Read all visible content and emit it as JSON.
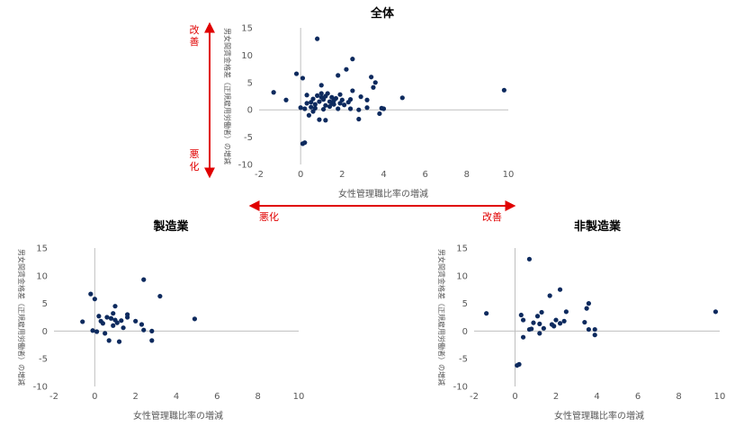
{
  "colors": {
    "marker": "#0d2a5e",
    "axis_zero": "#bfbfbf",
    "arrow": "#e00000"
  },
  "annotations": {
    "improve": "改善",
    "worsen": "悪化"
  },
  "chart_data": [
    {
      "type": "scatter",
      "title": "全体",
      "xlabel": "女性管理職比率の増減",
      "ylabel": "男女間賃金格差（正規雇用労働者）の増減",
      "xlim": [
        -2,
        10
      ],
      "ylim": [
        -10,
        15
      ],
      "xticks": [
        "-2",
        "0",
        "2",
        "4",
        "6",
        "8",
        "10"
      ],
      "yticks": [
        "15",
        "10",
        "5",
        "0",
        "-5",
        "-10"
      ],
      "grid": false,
      "points": [
        [
          -1.3,
          3.2
        ],
        [
          -0.7,
          1.8
        ],
        [
          -0.2,
          6.6
        ],
        [
          0.1,
          5.8
        ],
        [
          0.0,
          0.4
        ],
        [
          0.2,
          0.2
        ],
        [
          0.3,
          2.7
        ],
        [
          0.4,
          -1.0
        ],
        [
          0.5,
          1.4
        ],
        [
          0.6,
          2.0
        ],
        [
          0.7,
          0.3
        ],
        [
          0.8,
          2.6
        ],
        [
          0.8,
          13.0
        ],
        [
          0.9,
          -1.8
        ],
        [
          1.0,
          2.3
        ],
        [
          1.0,
          4.5
        ],
        [
          1.1,
          1.9
        ],
        [
          1.2,
          0.8
        ],
        [
          1.2,
          -1.9
        ],
        [
          1.3,
          3.0
        ],
        [
          1.4,
          1.5
        ],
        [
          1.5,
          2.3
        ],
        [
          1.6,
          1.0
        ],
        [
          1.7,
          2.1
        ],
        [
          1.8,
          6.3
        ],
        [
          1.8,
          0.2
        ],
        [
          1.9,
          1.2
        ],
        [
          2.0,
          1.8
        ],
        [
          2.2,
          7.4
        ],
        [
          2.3,
          1.4
        ],
        [
          2.4,
          0.2
        ],
        [
          2.5,
          3.5
        ],
        [
          2.5,
          9.3
        ],
        [
          2.8,
          0.0
        ],
        [
          2.8,
          -1.7
        ],
        [
          3.2,
          0.4
        ],
        [
          3.5,
          4.1
        ],
        [
          3.8,
          -0.7
        ],
        [
          4.9,
          2.2
        ],
        [
          0.1,
          -6.2
        ],
        [
          0.2,
          -6.0
        ],
        [
          0.5,
          0.5
        ],
        [
          0.7,
          1.0
        ],
        [
          0.9,
          1.5
        ],
        [
          1.0,
          3.0
        ],
        [
          1.2,
          2.5
        ],
        [
          1.4,
          0.6
        ],
        [
          1.6,
          1.7
        ],
        [
          1.9,
          2.8
        ],
        [
          2.1,
          0.9
        ],
        [
          2.4,
          1.9
        ],
        [
          2.9,
          2.4
        ],
        [
          3.2,
          1.8
        ],
        [
          3.6,
          5.0
        ],
        [
          3.9,
          0.3
        ],
        [
          4.0,
          0.2
        ],
        [
          3.4,
          6.0
        ],
        [
          9.8,
          3.6
        ],
        [
          0.3,
          1.2
        ],
        [
          0.6,
          -0.3
        ],
        [
          1.1,
          0.1
        ],
        [
          1.5,
          1.2
        ]
      ]
    },
    {
      "type": "scatter",
      "title": "製造業",
      "xlabel": "女性管理職比率の増減",
      "ylabel": "男女間賃金格差（正規雇用労働者）の増減",
      "xlim": [
        -2,
        10
      ],
      "ylim": [
        -10,
        15
      ],
      "xticks": [
        "-2",
        "0",
        "2",
        "4",
        "6",
        "8",
        "10"
      ],
      "yticks": [
        "15",
        "10",
        "5",
        "0",
        "-5",
        "-10"
      ],
      "grid": false,
      "points": [
        [
          -0.6,
          1.7
        ],
        [
          -0.2,
          6.7
        ],
        [
          0.0,
          5.8
        ],
        [
          -0.1,
          0.1
        ],
        [
          0.1,
          -0.1
        ],
        [
          0.2,
          2.7
        ],
        [
          0.3,
          1.8
        ],
        [
          0.4,
          1.4
        ],
        [
          0.5,
          -0.4
        ],
        [
          0.6,
          2.5
        ],
        [
          0.7,
          -1.7
        ],
        [
          0.8,
          2.3
        ],
        [
          0.9,
          3.2
        ],
        [
          1.0,
          4.5
        ],
        [
          1.0,
          2.0
        ],
        [
          1.1,
          1.5
        ],
        [
          1.2,
          -1.9
        ],
        [
          1.3,
          1.9
        ],
        [
          1.4,
          0.6
        ],
        [
          1.6,
          2.5
        ],
        [
          1.6,
          3.0
        ],
        [
          2.0,
          1.8
        ],
        [
          2.4,
          9.3
        ],
        [
          2.4,
          0.2
        ],
        [
          2.8,
          0.0
        ],
        [
          2.8,
          -1.7
        ],
        [
          3.2,
          6.3
        ],
        [
          4.9,
          2.2
        ],
        [
          2.3,
          1.2
        ],
        [
          0.9,
          1.0
        ]
      ]
    },
    {
      "type": "scatter",
      "title": "非製造業",
      "xlabel": "女性管理職比率の増減",
      "ylabel": "男女間賃金格差（正規雇用労働者）の増減",
      "xlim": [
        -2,
        10
      ],
      "ylim": [
        -10,
        15
      ],
      "xticks": [
        "-2",
        "0",
        "2",
        "4",
        "6",
        "8",
        "10"
      ],
      "yticks": [
        "15",
        "10",
        "5",
        "0",
        "-5",
        "-10"
      ],
      "grid": false,
      "points": [
        [
          -1.4,
          3.2
        ],
        [
          0.1,
          -6.2
        ],
        [
          0.2,
          -6.0
        ],
        [
          0.3,
          2.9
        ],
        [
          0.4,
          2.0
        ],
        [
          0.4,
          -1.1
        ],
        [
          0.7,
          13.0
        ],
        [
          0.7,
          0.3
        ],
        [
          0.8,
          0.4
        ],
        [
          0.9,
          1.5
        ],
        [
          1.1,
          2.7
        ],
        [
          1.2,
          1.3
        ],
        [
          1.2,
          -0.4
        ],
        [
          1.3,
          3.4
        ],
        [
          1.4,
          0.5
        ],
        [
          1.7,
          6.4
        ],
        [
          1.8,
          1.2
        ],
        [
          1.9,
          0.9
        ],
        [
          2.0,
          2.0
        ],
        [
          2.2,
          7.5
        ],
        [
          2.2,
          1.4
        ],
        [
          2.4,
          1.8
        ],
        [
          2.5,
          3.5
        ],
        [
          3.4,
          1.6
        ],
        [
          3.5,
          4.1
        ],
        [
          3.6,
          5.0
        ],
        [
          3.6,
          0.3
        ],
        [
          3.9,
          -0.7
        ],
        [
          3.9,
          0.3
        ],
        [
          9.8,
          3.5
        ]
      ]
    }
  ]
}
